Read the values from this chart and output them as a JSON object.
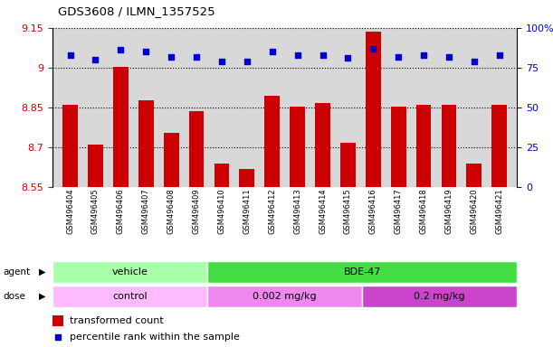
{
  "title": "GDS3608 / ILMN_1357525",
  "samples": [
    "GSM496404",
    "GSM496405",
    "GSM496406",
    "GSM496407",
    "GSM496408",
    "GSM496409",
    "GSM496410",
    "GSM496411",
    "GSM496412",
    "GSM496413",
    "GSM496414",
    "GSM496415",
    "GSM496416",
    "GSM496417",
    "GSM496418",
    "GSM496419",
    "GSM496420",
    "GSM496421"
  ],
  "bar_values": [
    8.862,
    8.71,
    9.002,
    8.876,
    8.755,
    8.838,
    8.638,
    8.62,
    8.895,
    8.852,
    8.868,
    8.718,
    9.137,
    8.855,
    8.862,
    8.862,
    8.638,
    8.862
  ],
  "percentile_values": [
    83,
    80,
    86,
    85,
    82,
    82,
    79,
    79,
    85,
    83,
    83,
    81,
    87,
    82,
    83,
    82,
    79,
    83
  ],
  "ylim_left": [
    8.55,
    9.15
  ],
  "ylim_right": [
    0,
    100
  ],
  "yticks_left": [
    8.55,
    8.7,
    8.85,
    9.0,
    9.15
  ],
  "ytick_labels_left": [
    "8.55",
    "8.7",
    "8.85",
    "9",
    "9.15"
  ],
  "yticks_right": [
    0,
    25,
    50,
    75,
    100
  ],
  "ytick_labels_right": [
    "0",
    "25",
    "50",
    "75",
    "100%"
  ],
  "bar_color": "#cc0000",
  "percentile_color": "#0000cc",
  "agent_groups": [
    {
      "label": "vehicle",
      "start": 0,
      "end": 6,
      "color": "#aaffaa"
    },
    {
      "label": "BDE-47",
      "start": 6,
      "end": 18,
      "color": "#44dd44"
    }
  ],
  "dose_groups": [
    {
      "label": "control",
      "start": 0,
      "end": 6,
      "color": "#ffbbff"
    },
    {
      "label": "0.002 mg/kg",
      "start": 6,
      "end": 12,
      "color": "#ee88ee"
    },
    {
      "label": "0.2 mg/kg",
      "start": 12,
      "end": 18,
      "color": "#cc44cc"
    }
  ],
  "legend_bar_label": "transformed count",
  "legend_pct_label": "percentile rank within the sample",
  "background_color": "#d8d8d8",
  "grid_color": "#000000"
}
